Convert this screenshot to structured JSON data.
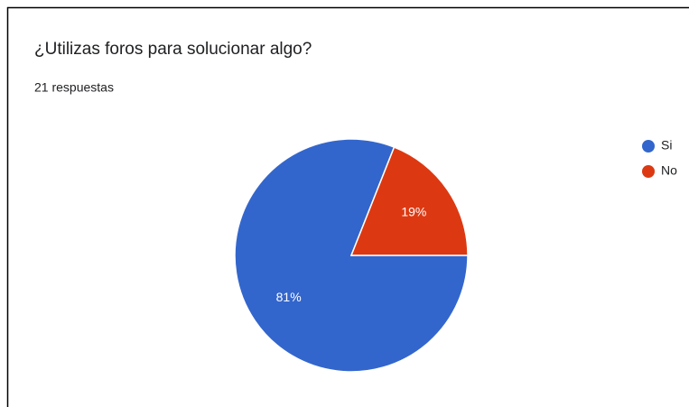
{
  "chart_data": {
    "type": "pie",
    "title": "¿Utilizas foros para solucionar algo?",
    "subtitle": "21 respuestas",
    "categories": [
      "Si",
      "No"
    ],
    "values": [
      81,
      19
    ],
    "value_labels": [
      "81%",
      "19%"
    ],
    "colors": [
      "#3366cc",
      "#dc3912"
    ],
    "legend": "right"
  }
}
